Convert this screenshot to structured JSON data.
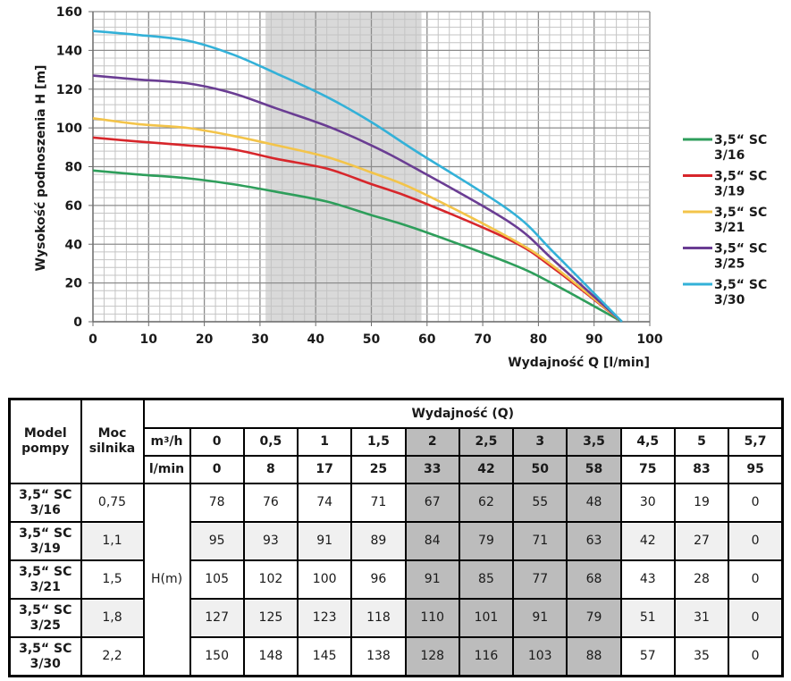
{
  "chart_data": {
    "type": "line",
    "title": "",
    "xlabel": "Wydajność Q [l/min]",
    "ylabel": "Wysokość podnoszenia H [m]",
    "xlim": [
      0,
      100
    ],
    "ylim": [
      0,
      160
    ],
    "xticks": [
      0,
      10,
      20,
      30,
      40,
      50,
      60,
      70,
      80,
      90,
      100
    ],
    "yticks": [
      0,
      20,
      40,
      60,
      80,
      100,
      120,
      140,
      160
    ],
    "x_minor_step": 2,
    "y_minor_step": 4,
    "grid": true,
    "highlight_band_x": [
      31,
      59
    ],
    "legend_position": "right",
    "x": [
      0,
      8,
      17,
      25,
      33,
      42,
      50,
      58,
      75,
      83,
      95
    ],
    "series": [
      {
        "name_line1": "3,5“ SC",
        "name_line2": "3/16",
        "color": "#2e9e5b",
        "values": [
          78,
          76,
          74,
          71,
          67,
          62,
          55,
          48,
          30,
          19,
          0
        ]
      },
      {
        "name_line1": "3,5“ SC",
        "name_line2": "3/19",
        "color": "#d7262b",
        "values": [
          95,
          93,
          91,
          89,
          84,
          79,
          71,
          63,
          42,
          27,
          0
        ]
      },
      {
        "name_line1": "3,5“ SC",
        "name_line2": "3/21",
        "color": "#f3c44a",
        "values": [
          105,
          102,
          100,
          96,
          91,
          85,
          77,
          68,
          43,
          28,
          0
        ]
      },
      {
        "name_line1": "3,5“ SC",
        "name_line2": "3/25",
        "color": "#6a3d93",
        "values": [
          127,
          125,
          123,
          118,
          110,
          101,
          91,
          79,
          51,
          31,
          0
        ]
      },
      {
        "name_line1": "3,5“ SC",
        "name_line2": "3/30",
        "color": "#33b1d8",
        "values": [
          150,
          148,
          145,
          138,
          128,
          116,
          103,
          88,
          57,
          35,
          0
        ]
      }
    ]
  },
  "table": {
    "header_model": [
      "Model",
      "pompy"
    ],
    "header_power": [
      "Moc",
      "silnika"
    ],
    "header_flow": "Wydajność (Q)",
    "unit_m3h_base": "m",
    "unit_m3h_sup": "3",
    "unit_m3h_tail": "/h",
    "unit_lmin": "l/min",
    "unit_h": "H(m)",
    "m3h": [
      "0",
      "0,5",
      "1",
      "1,5",
      "2",
      "2,5",
      "3",
      "3,5",
      "4,5",
      "5",
      "5,7"
    ],
    "lmin": [
      "0",
      "8",
      "17",
      "25",
      "33",
      "42",
      "50",
      "58",
      "75",
      "83",
      "95"
    ],
    "band_columns": [
      4,
      5,
      6,
      7
    ],
    "rows": [
      {
        "model": [
          "3,5“ SC",
          "3/16"
        ],
        "power": "0,75",
        "values": [
          "78",
          "76",
          "74",
          "71",
          "67",
          "62",
          "55",
          "48",
          "30",
          "19",
          "0"
        ]
      },
      {
        "model": [
          "3,5“ SC",
          "3/19"
        ],
        "power": "1,1",
        "values": [
          "95",
          "93",
          "91",
          "89",
          "84",
          "79",
          "71",
          "63",
          "42",
          "27",
          "0"
        ]
      },
      {
        "model": [
          "3,5“ SC",
          "3/21"
        ],
        "power": "1,5",
        "values": [
          "105",
          "102",
          "100",
          "96",
          "91",
          "85",
          "77",
          "68",
          "43",
          "28",
          "0"
        ]
      },
      {
        "model": [
          "3,5“ SC",
          "3/25"
        ],
        "power": "1,8",
        "values": [
          "127",
          "125",
          "123",
          "118",
          "110",
          "101",
          "91",
          "79",
          "51",
          "31",
          "0"
        ]
      },
      {
        "model": [
          "3,5“ SC",
          "3/30"
        ],
        "power": "2,2",
        "values": [
          "150",
          "148",
          "145",
          "138",
          "128",
          "116",
          "103",
          "88",
          "57",
          "35",
          "0"
        ]
      }
    ]
  }
}
